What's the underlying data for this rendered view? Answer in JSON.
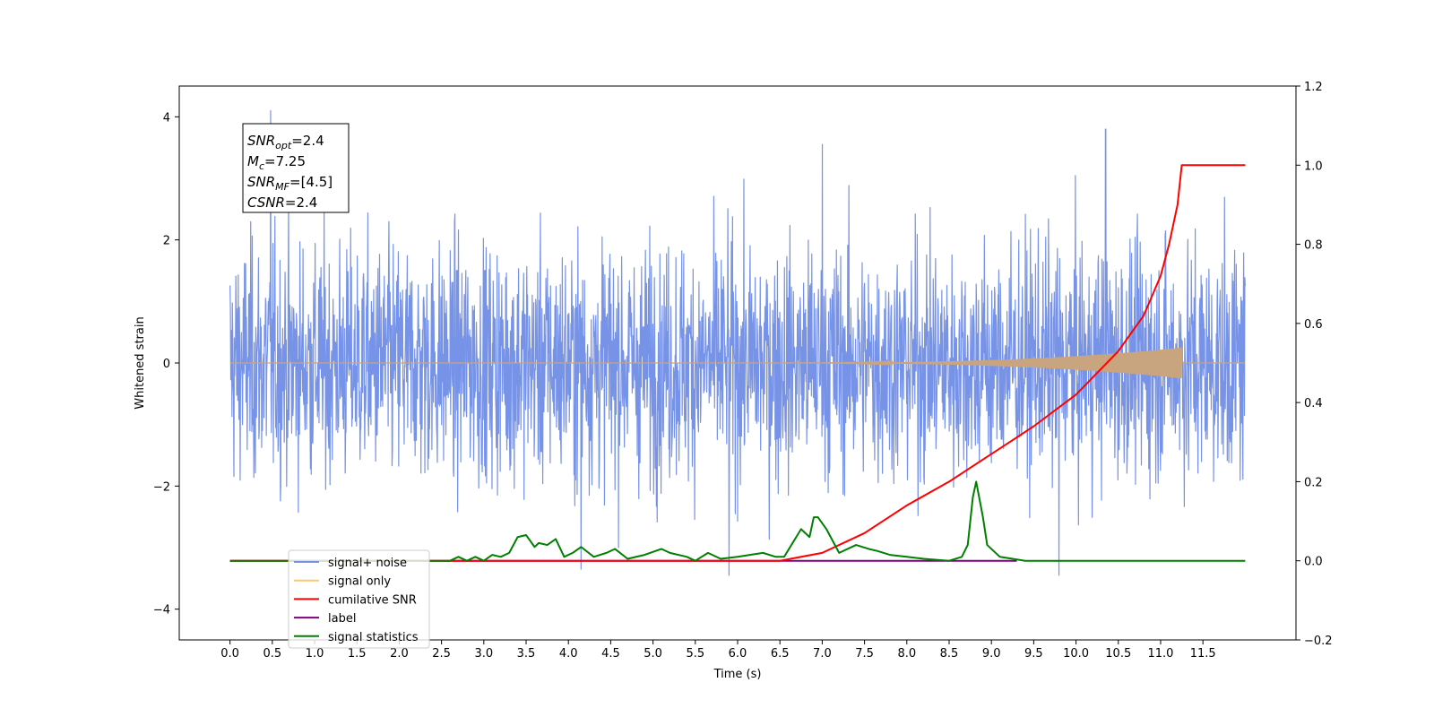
{
  "chart_data": {
    "type": "line",
    "xlabel": "Time (s)",
    "ylabel": "Whitened strain",
    "xlim": [
      -0.6,
      12.6
    ],
    "ylim": [
      -4.5,
      4.5
    ],
    "y2lim": [
      -0.2,
      1.2
    ],
    "x_ticks": [
      "0.0",
      "0.5",
      "1.0",
      "1.5",
      "2.0",
      "2.5",
      "3.0",
      "3.5",
      "4.0",
      "4.5",
      "5.0",
      "5.5",
      "6.0",
      "6.5",
      "7.0",
      "7.5",
      "8.0",
      "8.5",
      "9.0",
      "9.5",
      "10.0",
      "10.5",
      "11.0",
      "11.5"
    ],
    "y_ticks": [
      "4",
      "2",
      "0",
      "−2",
      "−4"
    ],
    "y2_ticks": [
      "1.2",
      "1.0",
      "0.8",
      "0.6",
      "0.4",
      "0.2",
      "0.0",
      "−0.2"
    ],
    "grid": false,
    "legend_position": "lower-left",
    "annotation": {
      "lines": [
        {
          "main": "SNR",
          "sub": "opt",
          "rest": "=2.4"
        },
        {
          "main": "M",
          "sub": "c",
          "rest": "=7.25"
        },
        {
          "main": "SNR",
          "sub": "MF",
          "rest": "=[4.5]"
        },
        {
          "main": "CSNR",
          "sub": "",
          "rest": "=2.4"
        }
      ]
    },
    "series": [
      {
        "name": "signal+ noise",
        "color": "#7793e8",
        "axis": "left",
        "x_range": [
          0.0,
          12.0
        ],
        "envelope_std": 0.95,
        "notable_peaks": [
          [
            0.48,
            4.1
          ],
          [
            10.35,
            3.8
          ],
          [
            7.0,
            3.55
          ],
          [
            5.9,
            -3.45
          ],
          [
            9.8,
            -3.45
          ],
          [
            4.15,
            -3.35
          ]
        ]
      },
      {
        "name": "signal only",
        "color": "#c9a57f",
        "axis": "left",
        "x_range": [
          0.0,
          12.0
        ],
        "chirp_start": 6.0,
        "chirp_end": 11.25,
        "max_amplitude": 0.25
      },
      {
        "name": "cumilative SNR",
        "color": "#ff0000",
        "axis": "right",
        "x": [
          0.0,
          6.5,
          7.0,
          7.5,
          8.0,
          8.5,
          9.0,
          9.5,
          10.0,
          10.5,
          10.8,
          11.0,
          11.1,
          11.2,
          11.25,
          12.0
        ],
        "y": [
          0.0,
          0.0,
          0.02,
          0.07,
          0.14,
          0.2,
          0.27,
          0.34,
          0.42,
          0.53,
          0.62,
          0.72,
          0.8,
          0.9,
          1.0,
          1.0
        ]
      },
      {
        "name": "label",
        "color": "#800080",
        "axis": "right",
        "x": [
          0.0,
          9.3
        ],
        "y": [
          0.0,
          0.0
        ]
      },
      {
        "name": "signal statistics",
        "color": "#008000",
        "axis": "right",
        "x": [
          0.0,
          2.6,
          2.7,
          2.8,
          2.9,
          3.0,
          3.1,
          3.2,
          3.3,
          3.4,
          3.5,
          3.6,
          3.65,
          3.75,
          3.85,
          3.95,
          4.05,
          4.15,
          4.3,
          4.45,
          4.55,
          4.7,
          4.9,
          5.1,
          5.2,
          5.4,
          5.5,
          5.65,
          5.8,
          6.0,
          6.3,
          6.45,
          6.55,
          6.75,
          6.85,
          6.9,
          6.95,
          7.05,
          7.2,
          7.4,
          7.55,
          7.65,
          7.8,
          8.0,
          8.2,
          8.5,
          8.65,
          8.72,
          8.78,
          8.82,
          8.9,
          8.95,
          9.1,
          9.4,
          12.0
        ],
        "y": [
          0.0,
          0.0,
          0.01,
          0.0,
          0.01,
          0.0,
          0.015,
          0.01,
          0.02,
          0.06,
          0.065,
          0.035,
          0.045,
          0.04,
          0.055,
          0.01,
          0.02,
          0.035,
          0.01,
          0.02,
          0.03,
          0.005,
          0.015,
          0.03,
          0.02,
          0.01,
          0.0,
          0.02,
          0.005,
          0.01,
          0.02,
          0.01,
          0.01,
          0.08,
          0.06,
          0.11,
          0.11,
          0.08,
          0.02,
          0.04,
          0.03,
          0.025,
          0.015,
          0.01,
          0.005,
          0.0,
          0.01,
          0.04,
          0.16,
          0.2,
          0.11,
          0.04,
          0.01,
          0.0,
          0.0
        ]
      }
    ],
    "legend": [
      {
        "label": "signal+ noise",
        "color": "#7793e8"
      },
      {
        "label": "signal only",
        "color": "#ffc870"
      },
      {
        "label": "cumilative SNR",
        "color": "#ff0000"
      },
      {
        "label": "label",
        "color": "#800080"
      },
      {
        "label": "signal statistics",
        "color": "#008000"
      }
    ]
  }
}
